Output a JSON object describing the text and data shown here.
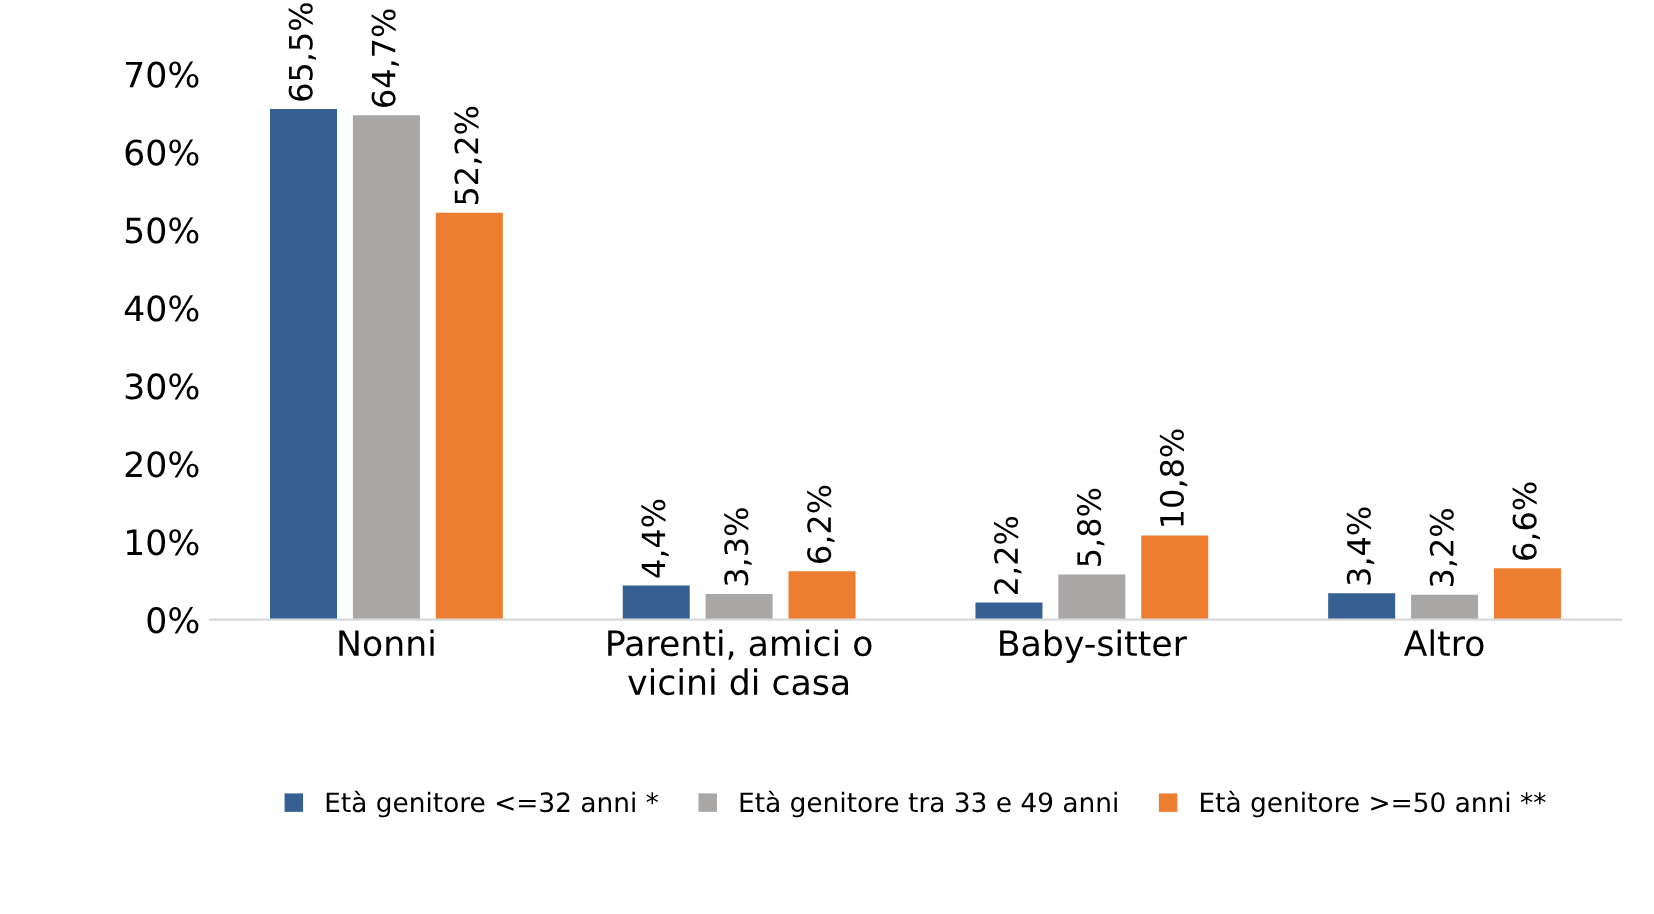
{
  "chart_data": {
    "type": "bar",
    "categories": [
      "Nonni",
      "Parenti, amici o\nvicini di casa",
      "Baby-sitter",
      "Altro"
    ],
    "series": [
      {
        "name": "Età genitore <=32 anni *",
        "color": "#376092",
        "values": [
          65.5,
          4.4,
          2.2,
          3.4
        ],
        "value_labels": [
          "65,5%",
          "4,4%",
          "2,2%",
          "3,4%"
        ]
      },
      {
        "name": "Età genitore tra 33 e 49 anni",
        "color": "#a9a6a6",
        "values": [
          64.7,
          3.3,
          5.8,
          3.2
        ],
        "value_labels": [
          "64,7%",
          "3,3%",
          "5,8%",
          "3,2%"
        ]
      },
      {
        "name": "Età genitore >=50 anni **",
        "color": "#ed7d31",
        "values": [
          52.2,
          6.2,
          10.8,
          6.6
        ],
        "value_labels": [
          "52,2%",
          "6,2%",
          "10,8%",
          "6,6%"
        ]
      }
    ],
    "ylim": [
      0,
      70
    ],
    "yticks": [
      {
        "value": 0,
        "label": "0%"
      },
      {
        "value": 10,
        "label": "10%"
      },
      {
        "value": 20,
        "label": "20%"
      },
      {
        "value": 30,
        "label": "30%"
      },
      {
        "value": 40,
        "label": "40%"
      },
      {
        "value": 50,
        "label": "50%"
      },
      {
        "value": 60,
        "label": "60%"
      },
      {
        "value": 70,
        "label": "70%"
      }
    ],
    "grid": false,
    "legend": "bottom"
  }
}
